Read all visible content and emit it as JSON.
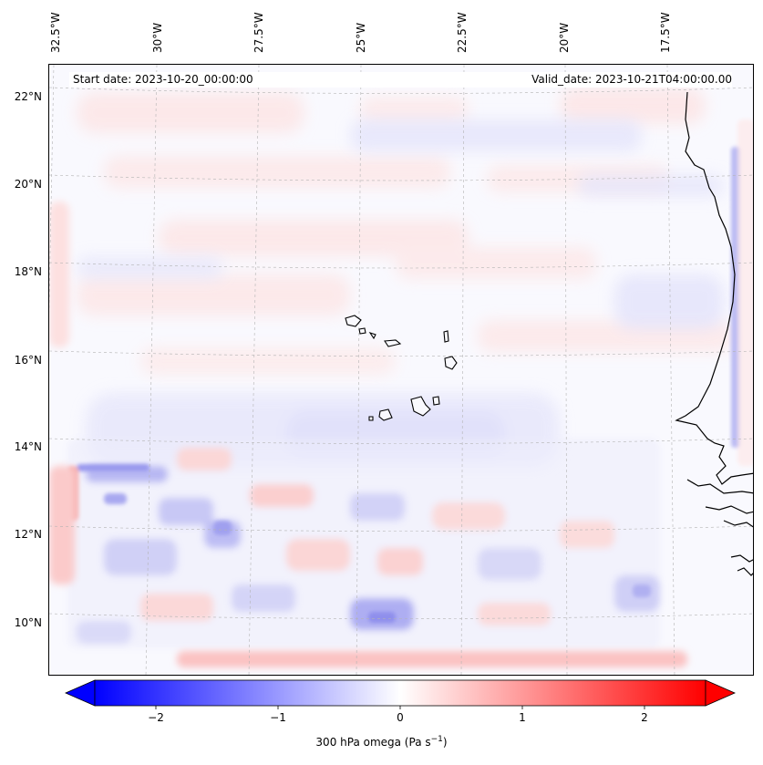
{
  "map": {
    "start_date": "Start date: 2023-10-20_00:00:00",
    "valid_date": "Valid_date: 2023-10-21T04:00:00.00",
    "lon_labels": [
      "32.5°W",
      "30°W",
      "27.5°W",
      "25°W",
      "22.5°W",
      "20°W",
      "17.5°W"
    ],
    "lat_labels": [
      "22°N",
      "20°N",
      "18°N",
      "16°N",
      "14°N",
      "12°N",
      "10°N"
    ],
    "field": "300 hPa omega",
    "colormap": "bwr",
    "grid": true
  },
  "colorbar": {
    "label": "300 hPa omega (Pa s",
    "label_exp": "−1",
    "label_close": ")",
    "ticks": [
      "−2",
      "−1",
      "0",
      "1",
      "2"
    ],
    "range": [
      -2.6,
      2.6
    ],
    "extend": "both",
    "colors": {
      "min": "#0000ff",
      "mid": "#ffffff",
      "max": "#ff0000"
    }
  }
}
